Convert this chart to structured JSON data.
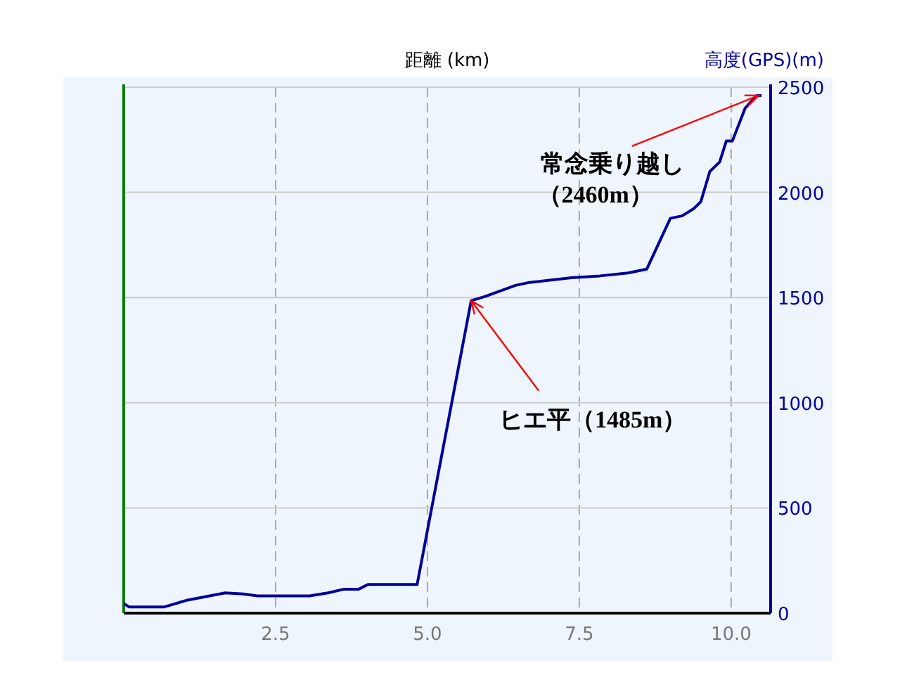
{
  "chart_data": {
    "type": "line",
    "xlabel": "距離 (km)",
    "ylabel": "高度(GPS)(m)",
    "x": [
      0,
      0.09,
      0.66,
      1.05,
      1.67,
      1.97,
      2.2,
      3.06,
      3.36,
      3.63,
      3.87,
      4.02,
      4.83,
      5.72,
      5.95,
      6.45,
      6.68,
      7.37,
      7.84,
      8.3,
      8.61,
      9.0,
      9.19,
      9.38,
      9.5,
      9.65,
      9.81,
      9.92,
      10.02,
      10.23,
      10.42,
      10.5
    ],
    "series": [
      {
        "color": "#000099",
        "values": [
          45,
          29,
          29,
          62,
          96,
          91,
          82,
          82,
          96,
          114,
          114,
          136,
          136,
          1485,
          1505,
          1558,
          1572,
          1594,
          1603,
          1617,
          1635,
          1877,
          1888,
          1922,
          1955,
          2100,
          2144,
          2244,
          2244,
          2400,
          2460,
          2460
        ]
      }
    ],
    "xlim": [
      0,
      10.65
    ],
    "ylim": [
      0,
      2500
    ],
    "xticks": [
      2.5,
      {
        "value": 5,
        "label": "5.0"
      },
      7.5,
      {
        "value": 10,
        "label": "10.0"
      }
    ],
    "yticks": [
      0,
      500,
      1000,
      1500,
      2000,
      2500
    ],
    "grid": true,
    "annotations": [
      {
        "text": "ヒエ平（1485m）",
        "x": 5.72,
        "y": 1485
      },
      {
        "text": "常念乗り越し（2460m）",
        "x": 10.45,
        "y": 2460
      }
    ]
  }
}
